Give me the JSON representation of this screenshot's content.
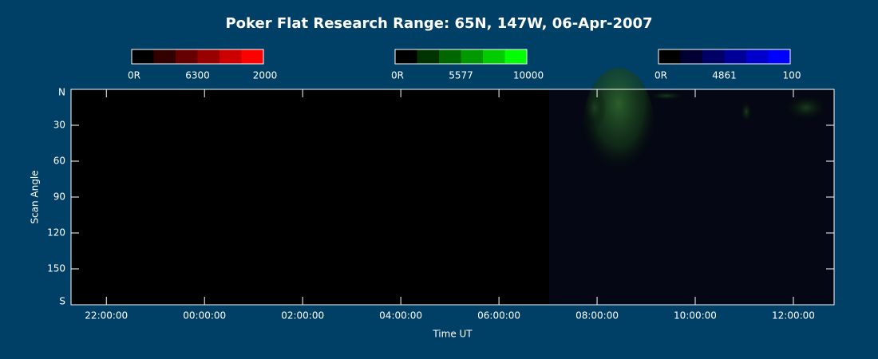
{
  "chart_data": {
    "type": "keogram",
    "title": "Poker Flat Research Range: 65N, 147W, 06-Apr-2007",
    "x_label": "Time UT",
    "y_label": "Scan Angle",
    "xlim": [
      -2.72,
      12.83
    ],
    "xticks": [
      {
        "value": -2,
        "label": "22:00:00"
      },
      {
        "value": 0,
        "label": "00:00:00"
      },
      {
        "value": 2,
        "label": "02:00:00"
      },
      {
        "value": 4,
        "label": "04:00:00"
      },
      {
        "value": 6,
        "label": "06:00:00"
      },
      {
        "value": 8,
        "label": "08:00:00"
      },
      {
        "value": 10,
        "label": "10:00:00"
      },
      {
        "value": 12,
        "label": "12:00:00"
      }
    ],
    "ylim": [
      0,
      180
    ],
    "yticks": [
      {
        "value": 0,
        "label": "N"
      },
      30,
      60,
      90,
      120,
      150,
      {
        "value": 180,
        "label": "S"
      }
    ],
    "colorbars": [
      {
        "min_label": "0R",
        "name": "6300",
        "max": 2000,
        "colors": [
          "#000000",
          "#330000",
          "#660000",
          "#990000",
          "#cc0000",
          "#ff0000"
        ]
      },
      {
        "min_label": "0R",
        "name": "5577",
        "max": 10000,
        "colors": [
          "#000000",
          "#003300",
          "#006600",
          "#009900",
          "#00cc00",
          "#00ff00"
        ]
      },
      {
        "min_label": "0R",
        "name": "4861",
        "max": 100,
        "colors": [
          "#000000",
          "#000033",
          "#000066",
          "#000099",
          "#0000cc",
          "#0000ff"
        ]
      }
    ]
  }
}
